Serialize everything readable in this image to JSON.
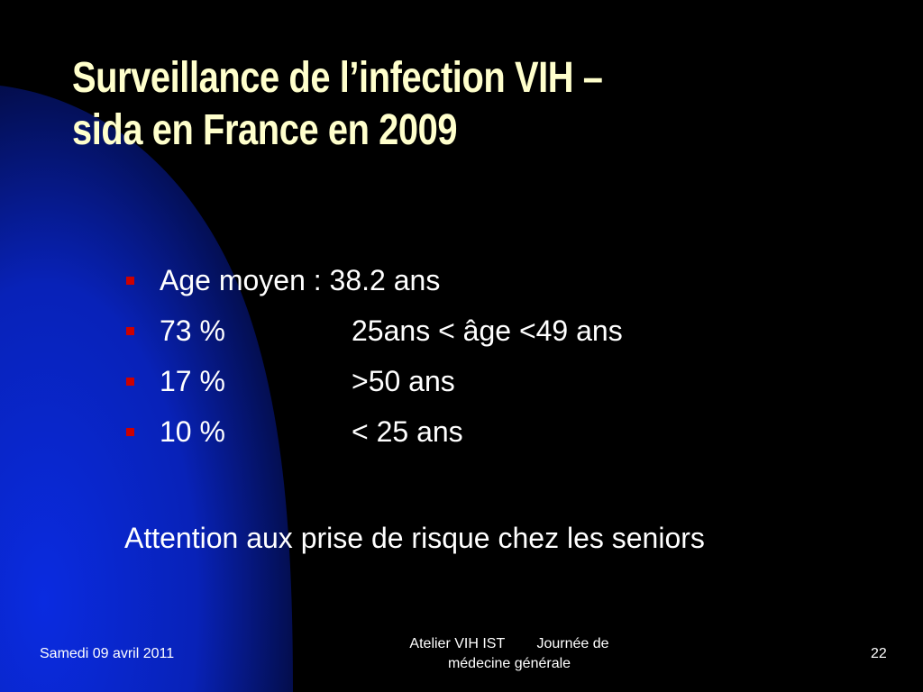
{
  "slide": {
    "title_line1": "Surveillance de l’infection VIH –",
    "title_line2": "sida en France en 2009",
    "bullets": [
      {
        "col1": "Age moyen : 38.2 ans",
        "col2": ""
      },
      {
        "col1": "73 %",
        "col2": "25ans < âge <49 ans"
      },
      {
        "col1": "17 %",
        "col2": ">50 ans"
      },
      {
        "col1": "10 %",
        "col2": "< 25 ans"
      }
    ],
    "note": "Attention aux prise de risque chez les seniors"
  },
  "footer": {
    "date": "Samedi 09 avril 2011",
    "center_line1": "Atelier VIH IST        Journée de",
    "center_line2": "médecine générale",
    "page_number": "22"
  },
  "colors": {
    "background": "#000000",
    "accent_blue": "#0A28D8",
    "title": "#FFFFCC",
    "text": "#FFFFFF",
    "bullet": "#CC0000"
  }
}
